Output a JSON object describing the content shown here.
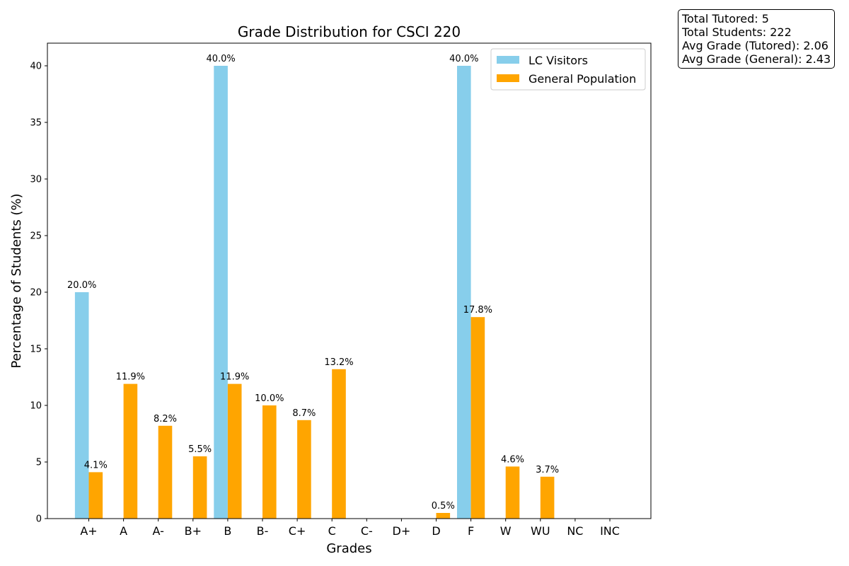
{
  "chart_data": {
    "type": "bar",
    "title": "Grade Distribution for CSCI 220",
    "xlabel": "Grades",
    "ylabel": "Percentage of Students (%)",
    "ylim": [
      0,
      42
    ],
    "yticks": [
      0,
      5,
      10,
      15,
      20,
      25,
      30,
      35,
      40
    ],
    "categories": [
      "A+",
      "A",
      "A-",
      "B+",
      "B",
      "B-",
      "C+",
      "C",
      "C-",
      "D+",
      "D",
      "F",
      "W",
      "WU",
      "NC",
      "INC"
    ],
    "series": [
      {
        "name": "LC Visitors",
        "color": "#87CEEB",
        "values": [
          20.0,
          0,
          0,
          0,
          40.0,
          0,
          0,
          0,
          0,
          0,
          0,
          40.0,
          0,
          0,
          0,
          0
        ],
        "labels": [
          "20.0%",
          "",
          "",
          "",
          "40.0%",
          "",
          "",
          "",
          "",
          "",
          "",
          "40.0%",
          "",
          "",
          "",
          ""
        ]
      },
      {
        "name": "General Population",
        "color": "#FFA500",
        "values": [
          4.1,
          11.9,
          8.2,
          5.5,
          11.9,
          10.0,
          8.7,
          13.2,
          0,
          0,
          0.5,
          17.8,
          4.6,
          3.7,
          0,
          0
        ],
        "labels": [
          "4.1%",
          "11.9%",
          "8.2%",
          "5.5%",
          "11.9%",
          "10.0%",
          "8.7%",
          "13.2%",
          "",
          "",
          "0.5%",
          "17.8%",
          "4.6%",
          "3.7%",
          "",
          ""
        ]
      }
    ],
    "legend_position": "top-right",
    "grid": false
  },
  "info_box": {
    "lines": [
      "Total Tutored: 5",
      "Total Students: 222",
      "Avg Grade (Tutored): 2.06",
      "Avg Grade (General): 2.43"
    ]
  }
}
